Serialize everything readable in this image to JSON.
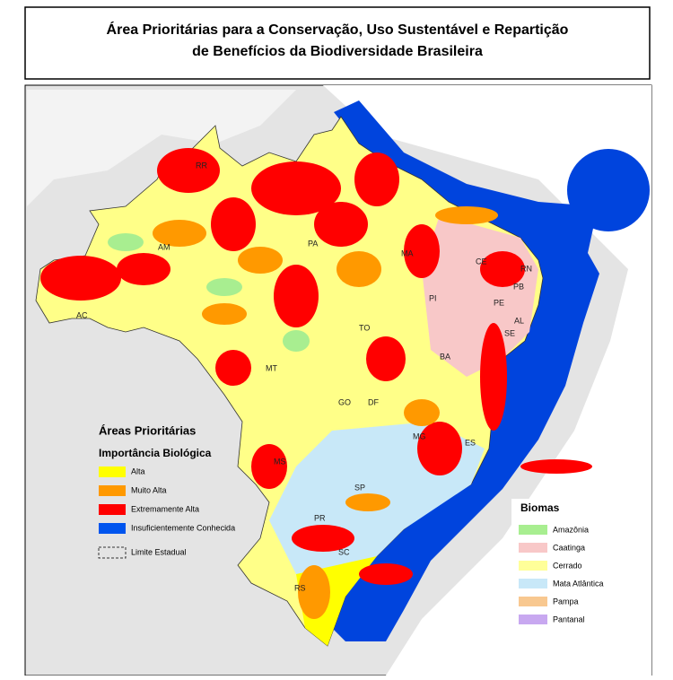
{
  "title_lines": [
    "Área Prioritárias para a Conservação, Uso Sustentável e Repartição",
    "de Benefícios da Biodiversidade Brasileira"
  ],
  "legend": {
    "title": "Áreas Prioritárias",
    "subtitle": "Importância Biológica",
    "items": [
      {
        "label": "Alta",
        "color": "#ffff00"
      },
      {
        "label": "Muito Alta",
        "color": "#ff9900"
      },
      {
        "label": "Extremamente Alta",
        "color": "#ff0000"
      },
      {
        "label": "Insuficientemente Conhecida",
        "color": "#0055ee"
      }
    ],
    "boundary": "Limite Estadual"
  },
  "biomes": {
    "title": "Biomas",
    "items": [
      {
        "label": "Amazônia",
        "color": "#a8ee90"
      },
      {
        "label": "Caatinga",
        "color": "#f8c8c8"
      },
      {
        "label": "Cerrado",
        "color": "#ffff99"
      },
      {
        "label": "Mata Atlântica",
        "color": "#c8e8f8"
      },
      {
        "label": "Pampa",
        "color": "#f8c890"
      },
      {
        "label": "Pantanal",
        "color": "#c8a8f0"
      }
    ]
  },
  "states": [
    "RR",
    "AM",
    "PA",
    "MA",
    "CE",
    "RN",
    "PB",
    "PE",
    "AL",
    "SE",
    "AC",
    "PI",
    "TO",
    "BA",
    "MT",
    "GO",
    "DF",
    "MG",
    "ES",
    "MS",
    "SP",
    "PR",
    "SC",
    "RS"
  ]
}
